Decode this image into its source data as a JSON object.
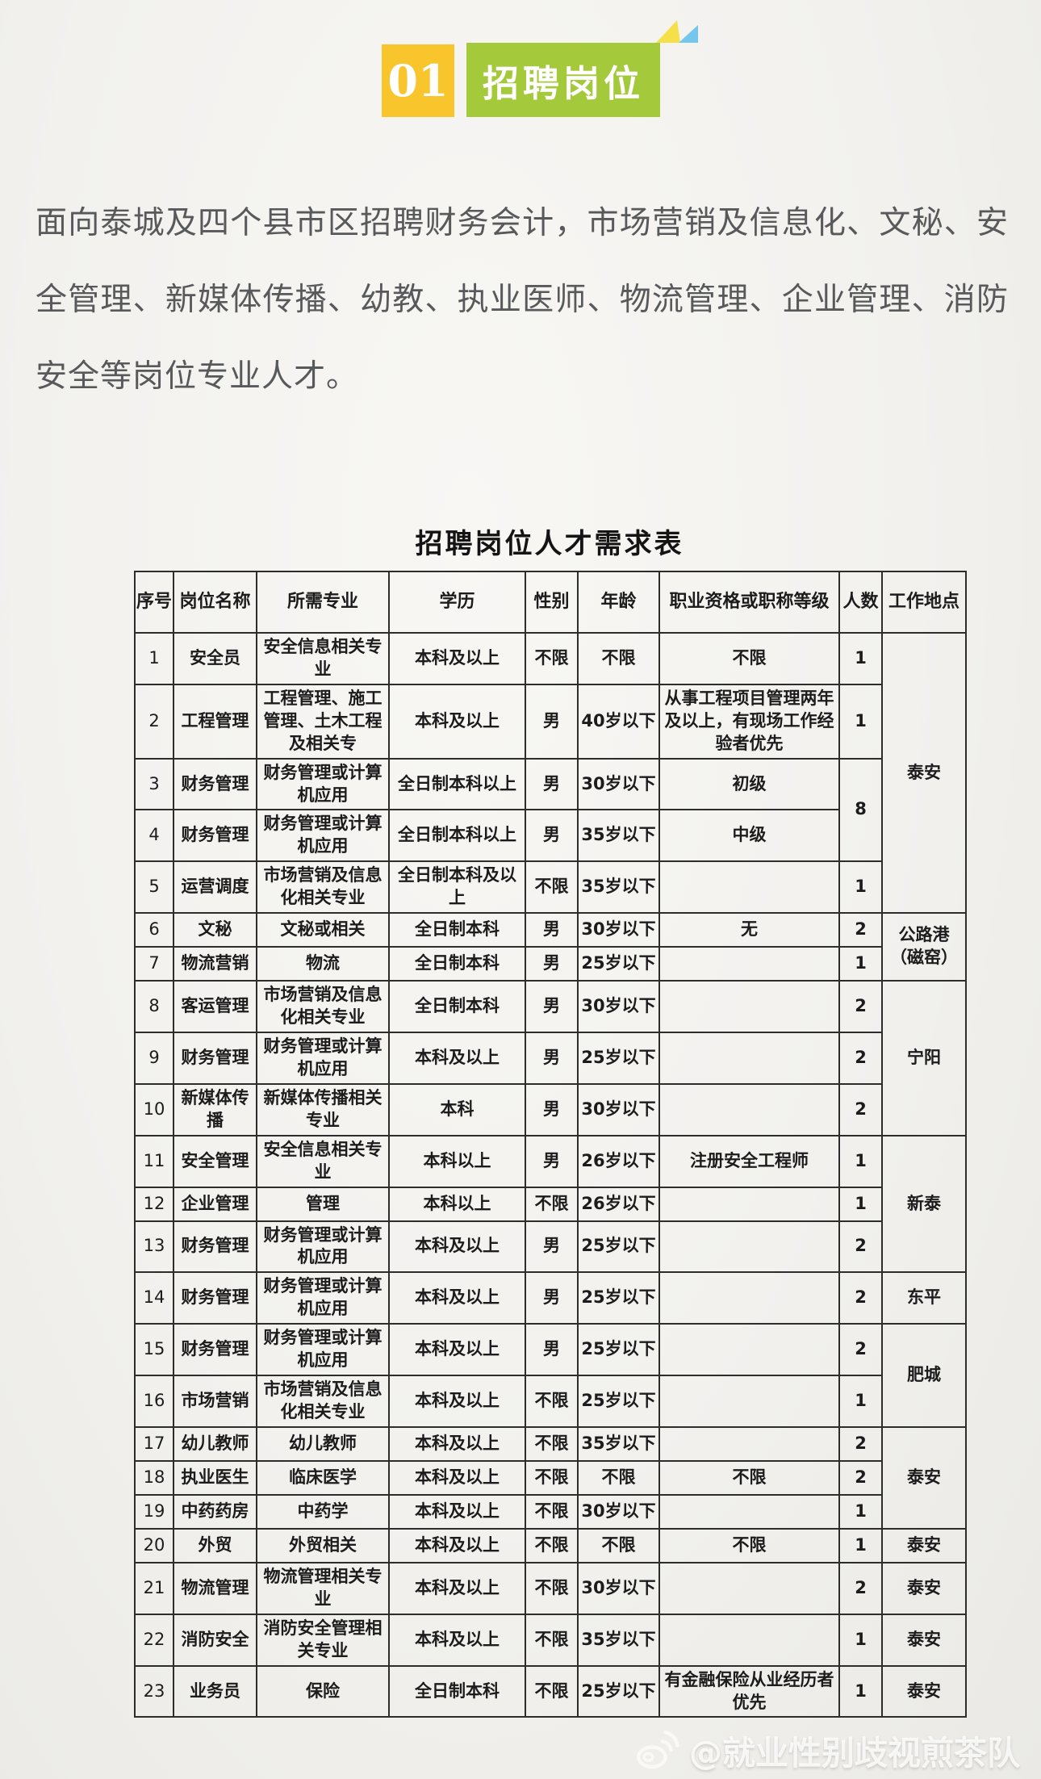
{
  "colors": {
    "badge_yellow": "#f8c62c",
    "badge_green": "#a4c93b",
    "flag_yellow": "#f5e04a",
    "flag_blue": "#74c6ec",
    "page_bg": "#f2f1ee",
    "intro_text": "#58595b",
    "table_ink": "#1c1c1c",
    "watermark_white": "#ffffff"
  },
  "header": {
    "number": "01",
    "title": "招聘岗位"
  },
  "intro": {
    "text": "面向泰城及四个县市区招聘财务会计，市场营销及信息化、文秘、安全管理、新媒体传播、幼教、执业医师、物流管理、企业管理、消防安全等岗位专业人才。"
  },
  "table": {
    "title": "招聘岗位人才需求表",
    "columns": [
      "序号",
      "岗位名称",
      "所需专业",
      "学历",
      "性别",
      "年龄",
      "职业资格或职称等级",
      "人数",
      "工作地点"
    ],
    "rows": [
      {
        "no": "1",
        "job": "安全员",
        "major": "安全信息相关专业",
        "degree": "本科及以上",
        "gender": "不限",
        "age": "不限",
        "qual": "不限",
        "count": "1",
        "count_span": 1,
        "loc": "泰安",
        "loc_span": 5
      },
      {
        "no": "2",
        "job": "工程管理",
        "major": "工程管理、施工管理、土木工程及相关专",
        "degree": "本科及以上",
        "gender": "男",
        "age": "40岁以下",
        "qual": "从事工程项目管理两年及以上，有现场工作经验者优先",
        "count": "1",
        "count_span": 1
      },
      {
        "no": "3",
        "job": "财务管理",
        "major": "财务管理或计算机应用",
        "degree": "全日制本科以上",
        "gender": "男",
        "age": "30岁以下",
        "qual": "初级",
        "count": "8",
        "count_span": 2
      },
      {
        "no": "4",
        "job": "财务管理",
        "major": "财务管理或计算机应用",
        "degree": "全日制本科以上",
        "gender": "男",
        "age": "35岁以下",
        "qual": "中级"
      },
      {
        "no": "5",
        "job": "运营调度",
        "major": "市场营销及信息化相关专业",
        "degree": "全日制本科及以上",
        "gender": "不限",
        "age": "35岁以下",
        "qual": "",
        "count": "1",
        "count_span": 1
      },
      {
        "no": "6",
        "job": "文秘",
        "major": "文秘或相关",
        "degree": "全日制本科",
        "gender": "男",
        "age": "30岁以下",
        "qual": "无",
        "count": "2",
        "count_span": 1,
        "loc": "公路港（磁窑）",
        "loc_span": 2
      },
      {
        "no": "7",
        "job": "物流营销",
        "major": "物流",
        "degree": "全日制本科",
        "gender": "男",
        "age": "25岁以下",
        "qual": "",
        "count": "1",
        "count_span": 1
      },
      {
        "no": "8",
        "job": "客运管理",
        "major": "市场营销及信息化相关专业",
        "degree": "全日制本科",
        "gender": "男",
        "age": "30岁以下",
        "qual": "",
        "count": "2",
        "count_span": 1,
        "loc": "宁阳",
        "loc_span": 3
      },
      {
        "no": "9",
        "job": "财务管理",
        "major": "财务管理或计算机应用",
        "degree": "本科及以上",
        "gender": "男",
        "age": "25岁以下",
        "qual": "",
        "count": "2",
        "count_span": 1
      },
      {
        "no": "10",
        "job": "新媒体传播",
        "major": "新媒体传播相关专业",
        "degree": "本科",
        "gender": "男",
        "age": "30岁以下",
        "qual": "",
        "count": "2",
        "count_span": 1
      },
      {
        "no": "11",
        "job": "安全管理",
        "major": "安全信息相关专业",
        "degree": "本科以上",
        "gender": "男",
        "age": "26岁以下",
        "qual": "注册安全工程师",
        "count": "1",
        "count_span": 1,
        "loc": "新泰",
        "loc_span": 3
      },
      {
        "no": "12",
        "job": "企业管理",
        "major": "管理",
        "degree": "本科以上",
        "gender": "不限",
        "age": "26岁以下",
        "qual": "",
        "count": "1",
        "count_span": 1
      },
      {
        "no": "13",
        "job": "财务管理",
        "major": "财务管理或计算机应用",
        "degree": "本科及以上",
        "gender": "男",
        "age": "25岁以下",
        "qual": "",
        "count": "2",
        "count_span": 1
      },
      {
        "no": "14",
        "job": "财务管理",
        "major": "财务管理或计算机应用",
        "degree": "本科及以上",
        "gender": "男",
        "age": "25岁以下",
        "qual": "",
        "count": "2",
        "count_span": 1,
        "loc": "东平",
        "loc_span": 1
      },
      {
        "no": "15",
        "job": "财务管理",
        "major": "财务管理或计算机应用",
        "degree": "本科及以上",
        "gender": "男",
        "age": "25岁以下",
        "qual": "",
        "count": "2",
        "count_span": 1,
        "loc": "肥城",
        "loc_span": 2
      },
      {
        "no": "16",
        "job": "市场营销",
        "major": "市场营销及信息化相关专业",
        "degree": "本科及以上",
        "gender": "不限",
        "age": "25岁以下",
        "qual": "",
        "count": "1",
        "count_span": 1
      },
      {
        "no": "17",
        "job": "幼儿教师",
        "major": "幼儿教师",
        "degree": "本科及以上",
        "gender": "不限",
        "age": "35岁以下",
        "qual": "",
        "count": "2",
        "count_span": 1,
        "loc": "泰安",
        "loc_span": 3
      },
      {
        "no": "18",
        "job": "执业医生",
        "major": "临床医学",
        "degree": "本科及以上",
        "gender": "不限",
        "age": "不限",
        "qual": "不限",
        "count": "2",
        "count_span": 1
      },
      {
        "no": "19",
        "job": "中药药房",
        "major": "中药学",
        "degree": "本科及以上",
        "gender": "不限",
        "age": "30岁以下",
        "qual": "",
        "count": "1",
        "count_span": 1
      },
      {
        "no": "20",
        "job": "外贸",
        "major": "外贸相关",
        "degree": "本科及以上",
        "gender": "不限",
        "age": "不限",
        "qual": "不限",
        "count": "1",
        "count_span": 1,
        "loc": "泰安",
        "loc_span": 1
      },
      {
        "no": "21",
        "job": "物流管理",
        "major": "物流管理相关专业",
        "degree": "本科及以上",
        "gender": "不限",
        "age": "30岁以下",
        "qual": "",
        "count": "2",
        "count_span": 1,
        "loc": "泰安",
        "loc_span": 1
      },
      {
        "no": "22",
        "job": "消防安全",
        "major": "消防安全管理相关专业",
        "degree": "本科及以上",
        "gender": "不限",
        "age": "35岁以下",
        "qual": "",
        "count": "1",
        "count_span": 1,
        "loc": "泰安",
        "loc_span": 1
      },
      {
        "no": "23",
        "job": "业务员",
        "major": "保险",
        "degree": "全日制本科",
        "gender": "不限",
        "age": "25岁以下",
        "qual": "有金融保险从业经历者优先",
        "count": "1",
        "count_span": 1,
        "loc": "泰安",
        "loc_span": 1
      }
    ]
  },
  "watermark": {
    "icon": "weibo-icon",
    "text": "@就业性别歧视煎茶队"
  }
}
